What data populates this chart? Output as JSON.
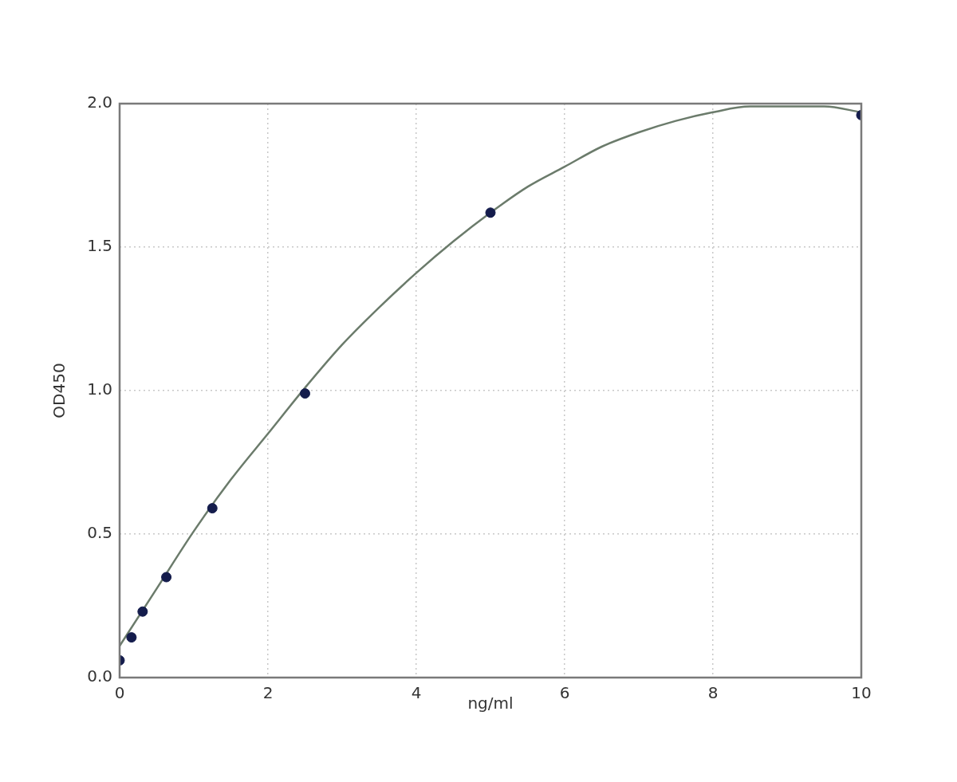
{
  "chart_data": {
    "type": "scatter",
    "xlabel": "ng/ml",
    "ylabel": "OD450",
    "xlim": [
      0,
      10
    ],
    "ylim": [
      0,
      2
    ],
    "xticks": [
      0,
      2,
      4,
      6,
      8,
      10
    ],
    "yticks": [
      {
        "value": 0,
        "label": "0.0"
      },
      0.5,
      {
        "value": 1,
        "label": "1.0"
      },
      1.5,
      {
        "value": 2,
        "label": "2.0"
      }
    ],
    "grid": true,
    "legend": false,
    "marker": "circle",
    "series": [
      {
        "color": "#141c4c",
        "x": [
          0,
          0.16,
          0.31,
          0.63,
          1.25,
          2.5,
          5,
          10
        ],
        "values": [
          0.06,
          0.14,
          0.23,
          0.35,
          0.59,
          0.99,
          1.62,
          1.96
        ]
      },
      {
        "type": "line",
        "color": "#6b7b6b",
        "marker": "none",
        "line_style": "solid",
        "x": [
          0,
          0.5,
          1,
          1.5,
          2,
          2.5,
          3,
          3.5,
          4,
          4.5,
          5,
          5.5,
          6,
          6.5,
          7,
          7.5,
          8,
          8.5,
          9,
          9.5,
          10
        ],
        "values": [
          0.11,
          0.31,
          0.51,
          0.69,
          0.85,
          1.01,
          1.16,
          1.29,
          1.41,
          1.52,
          1.62,
          1.71,
          1.78,
          1.85,
          1.9,
          1.94,
          1.97,
          1.99,
          1.99,
          1.99,
          1.97
        ]
      }
    ]
  }
}
